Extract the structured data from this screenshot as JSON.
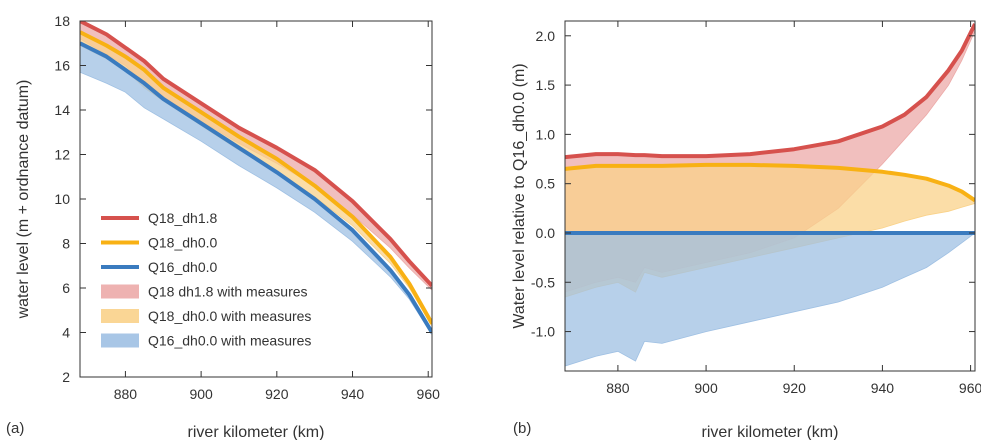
{
  "figure": {
    "panel_a_letter": "(a)",
    "panel_b_letter": "(b)"
  },
  "colors": {
    "q18_dh18": "#d6514d",
    "q18_dh00": "#f8b114",
    "q16_dh00": "#3a7bbf",
    "q18_dh18_fill": "#ecaaa8",
    "q18_dh00_fill": "#fad289",
    "q16_dh00_fill": "#9fc0e3"
  },
  "chart_data": [
    {
      "type": "line",
      "panel": "a",
      "xlabel": "river kilometer (km)",
      "ylabel": "water level (m + ordnance datum)",
      "xlim": [
        868,
        961
      ],
      "ylim": [
        2,
        18
      ],
      "xticks": [
        880,
        900,
        920,
        940,
        960
      ],
      "yticks": [
        2,
        4,
        6,
        8,
        10,
        12,
        14,
        16,
        18
      ],
      "grid": false,
      "legend_position": "lower-left",
      "x": [
        868,
        875,
        880,
        885,
        890,
        900,
        910,
        920,
        930,
        940,
        950,
        955,
        961
      ],
      "series": [
        {
          "name": "Q18_dh1.8",
          "color_key": "q18_dh18",
          "values": [
            18.0,
            17.4,
            16.8,
            16.2,
            15.4,
            14.3,
            13.2,
            12.3,
            11.3,
            9.9,
            8.2,
            7.2,
            6.1
          ]
        },
        {
          "name": "Q18_dh0.0",
          "color_key": "q18_dh00",
          "values": [
            17.5,
            16.9,
            16.4,
            15.8,
            15.0,
            13.9,
            12.8,
            11.8,
            10.6,
            9.2,
            7.4,
            6.2,
            4.4
          ]
        },
        {
          "name": "Q16_dh0.0",
          "color_key": "q16_dh00",
          "values": [
            17.0,
            16.4,
            15.8,
            15.2,
            14.5,
            13.4,
            12.3,
            11.2,
            10.0,
            8.6,
            6.8,
            5.7,
            4.0
          ]
        }
      ],
      "bands": [
        {
          "name": "Q18 dh1.8 with measures",
          "color_key": "q18_dh18_fill",
          "lower": [
            17.2,
            16.5,
            16.0,
            15.2,
            14.6,
            13.5,
            12.5,
            11.6,
            10.6,
            9.3,
            7.8,
            6.9,
            5.9
          ],
          "upper": [
            18.0,
            17.4,
            16.8,
            16.2,
            15.4,
            14.3,
            13.2,
            12.3,
            11.3,
            9.9,
            8.2,
            7.2,
            6.1
          ]
        },
        {
          "name": "Q18_dh0.0 with measures",
          "color_key": "q18_dh00_fill",
          "lower": [
            16.9,
            16.3,
            15.8,
            15.0,
            14.4,
            13.3,
            12.2,
            11.2,
            10.1,
            8.8,
            7.1,
            6.0,
            4.3
          ],
          "upper": [
            17.5,
            16.9,
            16.4,
            15.8,
            15.0,
            13.9,
            12.8,
            11.8,
            10.6,
            9.2,
            7.4,
            6.2,
            4.4
          ]
        },
        {
          "name": "Q16_dh0.0 with measures",
          "color_key": "q16_dh00_fill",
          "lower": [
            15.7,
            15.2,
            14.8,
            14.1,
            13.6,
            12.6,
            11.5,
            10.5,
            9.4,
            8.1,
            6.5,
            5.5,
            3.9
          ],
          "upper": [
            17.0,
            16.4,
            15.8,
            15.2,
            14.5,
            13.4,
            12.3,
            11.2,
            10.0,
            8.6,
            6.8,
            5.7,
            4.0
          ]
        }
      ]
    },
    {
      "type": "line",
      "panel": "b",
      "xlabel": "river kilometer (km)",
      "ylabel": "Water level relative to Q16_dh0.0 (m)",
      "xlim": [
        868,
        961
      ],
      "ylim": [
        -1.4,
        2.15
      ],
      "xticks": [
        880,
        900,
        920,
        940,
        960
      ],
      "yticks": [
        -1.0,
        -0.5,
        0.0,
        0.5,
        1.0,
        1.5,
        2.0
      ],
      "grid": false,
      "x": [
        868,
        875,
        880,
        884,
        886,
        890,
        900,
        910,
        920,
        930,
        940,
        945,
        950,
        955,
        958,
        961
      ],
      "series": [
        {
          "name": "Q18_dh1.8",
          "color_key": "q18_dh18",
          "values": [
            0.77,
            0.8,
            0.8,
            0.79,
            0.79,
            0.78,
            0.78,
            0.8,
            0.85,
            0.93,
            1.08,
            1.2,
            1.38,
            1.65,
            1.85,
            2.12
          ]
        },
        {
          "name": "Q18_dh0.0",
          "color_key": "q18_dh00",
          "values": [
            0.65,
            0.68,
            0.68,
            0.68,
            0.68,
            0.68,
            0.69,
            0.69,
            0.68,
            0.66,
            0.62,
            0.59,
            0.55,
            0.48,
            0.42,
            0.33
          ]
        },
        {
          "name": "Q16_dh0.0",
          "color_key": "q16_dh00",
          "values": [
            0.0,
            0.0,
            0.0,
            0.0,
            0.0,
            0.0,
            0.0,
            0.0,
            0.0,
            0.0,
            0.0,
            0.0,
            0.0,
            0.0,
            0.0,
            0.0
          ]
        }
      ],
      "bands": [
        {
          "name": "Q18 dh1.8 with measures",
          "color_key": "q18_dh18_fill",
          "lower": [
            -0.6,
            -0.5,
            -0.45,
            -0.5,
            -0.35,
            -0.4,
            -0.3,
            -0.2,
            -0.05,
            0.25,
            0.7,
            0.95,
            1.2,
            1.5,
            1.75,
            2.05
          ],
          "upper": [
            0.77,
            0.8,
            0.8,
            0.79,
            0.79,
            0.78,
            0.78,
            0.8,
            0.85,
            0.93,
            1.08,
            1.2,
            1.38,
            1.65,
            1.85,
            2.12
          ]
        },
        {
          "name": "Q18_dh0.0 with measures",
          "color_key": "q18_dh00_fill",
          "lower": [
            -0.65,
            -0.55,
            -0.5,
            -0.6,
            -0.4,
            -0.45,
            -0.35,
            -0.25,
            -0.15,
            -0.05,
            0.05,
            0.12,
            0.18,
            0.22,
            0.26,
            0.3
          ],
          "upper": [
            0.65,
            0.68,
            0.68,
            0.68,
            0.68,
            0.68,
            0.69,
            0.69,
            0.68,
            0.66,
            0.62,
            0.59,
            0.55,
            0.48,
            0.42,
            0.33
          ]
        },
        {
          "name": "Q16_dh0.0 with measures",
          "color_key": "q16_dh00_fill",
          "lower": [
            -1.35,
            -1.25,
            -1.2,
            -1.3,
            -1.1,
            -1.12,
            -1.0,
            -0.9,
            -0.8,
            -0.7,
            -0.55,
            -0.45,
            -0.35,
            -0.2,
            -0.1,
            0.0
          ],
          "upper": [
            0.0,
            0.0,
            0.0,
            0.0,
            0.0,
            0.0,
            0.0,
            0.0,
            0.0,
            0.0,
            0.0,
            0.0,
            0.0,
            0.0,
            0.0,
            0.0
          ]
        }
      ]
    }
  ]
}
